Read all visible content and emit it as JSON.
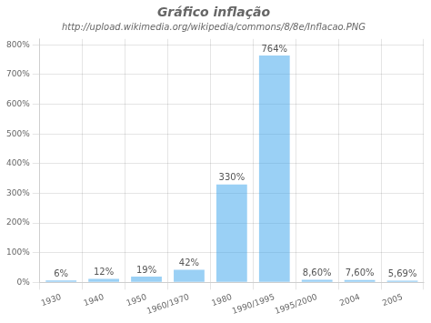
{
  "chart_data": {
    "type": "bar",
    "title": "Gráfico inflação",
    "subtitle": "http://upload.wikimedia.org/wikipedia/commons/8/8e/Inflacao.PNG",
    "categories": [
      "1930",
      "1940",
      "1950",
      "1960/1970",
      "1980",
      "1990/1995",
      "1995/2000",
      "2004",
      "2005"
    ],
    "values": [
      6,
      12,
      19,
      42,
      330,
      764,
      8.6,
      7.6,
      5.69
    ],
    "value_labels": [
      "6%",
      "12%",
      "19%",
      "42%",
      "330%",
      "764%",
      "8,60%",
      "7,60%",
      "5,69%"
    ],
    "data_labels": true,
    "ylim": [
      0,
      820
    ],
    "yticks": [
      {
        "value": 0,
        "label": "0%"
      },
      {
        "value": 100,
        "label": "100%"
      },
      {
        "value": 200,
        "label": "200%"
      },
      {
        "value": 300,
        "label": "300%"
      },
      {
        "value": 400,
        "label": "400%"
      },
      {
        "value": 500,
        "label": "500%"
      },
      {
        "value": 600,
        "label": "600%"
      },
      {
        "value": 700,
        "label": "700%"
      },
      {
        "value": 800,
        "label": "800%"
      }
    ],
    "grid": true
  }
}
